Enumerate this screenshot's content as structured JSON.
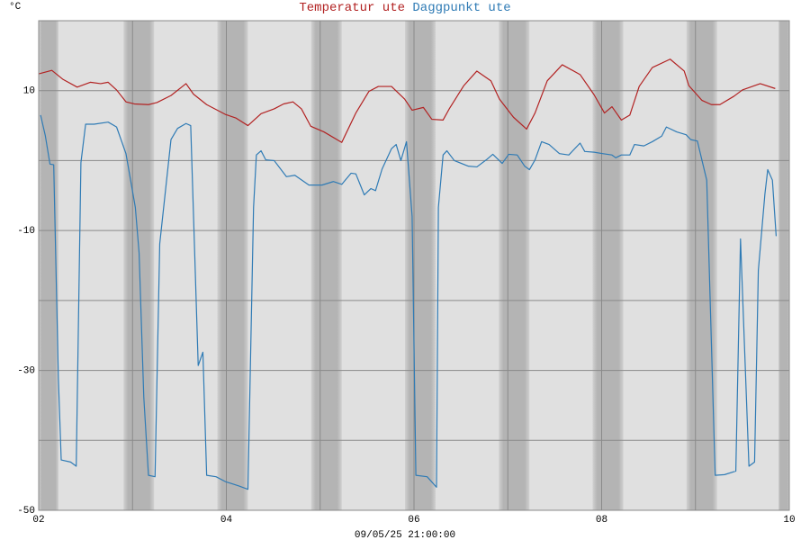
{
  "chart_data": {
    "type": "line",
    "ylabel": "°C",
    "xlabel": "09/05/25 21:00:00",
    "xlim": [
      2,
      10
    ],
    "xticks": [
      {
        "value": 2,
        "label": "02"
      },
      {
        "value": 4,
        "label": "04"
      },
      {
        "value": 6,
        "label": "06"
      },
      {
        "value": 8,
        "label": "08"
      },
      {
        "value": 10,
        "label": "10"
      }
    ],
    "minor_xticks": [
      3,
      5,
      7,
      9
    ],
    "ylim": [
      -50,
      20
    ],
    "yticks": [
      -50,
      -30,
      -10,
      10
    ],
    "minor_yticks": [
      -40,
      -20,
      0
    ],
    "grid": true,
    "series": [
      {
        "name": "Temperatur ute",
        "color": "#b22222",
        "x": [
          2.0,
          2.14,
          2.26,
          2.41,
          2.55,
          2.66,
          2.74,
          2.83,
          2.93,
          3.02,
          3.17,
          3.26,
          3.41,
          3.57,
          3.65,
          3.79,
          3.99,
          4.1,
          4.23,
          4.37,
          4.51,
          4.61,
          4.71,
          4.8,
          4.9,
          5.04,
          5.23,
          5.38,
          5.52,
          5.62,
          5.76,
          5.9,
          5.98,
          6.1,
          6.19,
          6.31,
          6.38,
          6.53,
          6.67,
          6.82,
          6.91,
          7.06,
          7.2,
          7.29,
          7.42,
          7.58,
          7.77,
          7.92,
          8.03,
          8.11,
          8.21,
          8.3,
          8.4,
          8.54,
          8.73,
          8.88,
          8.93,
          9.07,
          9.17,
          9.26,
          9.41,
          9.5,
          9.69,
          9.85
        ],
        "values": [
          12.4,
          12.9,
          11.6,
          10.5,
          11.2,
          11.0,
          11.2,
          10.1,
          8.4,
          8.1,
          8.0,
          8.3,
          9.3,
          11.0,
          9.5,
          8.0,
          6.6,
          6.1,
          5.0,
          6.7,
          7.4,
          8.1,
          8.4,
          7.4,
          4.9,
          4.1,
          2.6,
          6.8,
          9.9,
          10.6,
          10.6,
          8.8,
          7.2,
          7.6,
          5.9,
          5.8,
          7.5,
          10.7,
          12.8,
          11.4,
          8.8,
          6.2,
          4.5,
          6.8,
          11.4,
          13.7,
          12.3,
          9.4,
          6.8,
          7.7,
          5.8,
          6.5,
          10.6,
          13.3,
          14.5,
          12.8,
          10.7,
          8.6,
          8.0,
          8.0,
          9.2,
          10.1,
          11.0,
          10.3
        ]
      },
      {
        "name": "Daggpunkt ute",
        "color": "#2f7bb5",
        "x": [
          2.02,
          2.07,
          2.12,
          2.16,
          2.21,
          2.24,
          2.34,
          2.4,
          2.45,
          2.5,
          2.59,
          2.74,
          2.83,
          2.93,
          3.03,
          3.07,
          3.12,
          3.17,
          3.24,
          3.29,
          3.41,
          3.48,
          3.57,
          3.62,
          3.7,
          3.75,
          3.79,
          3.89,
          3.99,
          4.13,
          4.23,
          4.29,
          4.32,
          4.37,
          4.42,
          4.51,
          4.64,
          4.73,
          4.88,
          5.02,
          5.14,
          5.23,
          5.33,
          5.38,
          5.47,
          5.54,
          5.59,
          5.66,
          5.76,
          5.81,
          5.86,
          5.92,
          5.98,
          6.02,
          6.14,
          6.24,
          6.26,
          6.31,
          6.35,
          6.43,
          6.58,
          6.67,
          6.77,
          6.84,
          6.94,
          7.01,
          7.1,
          7.18,
          7.23,
          7.29,
          7.36,
          7.44,
          7.55,
          7.65,
          7.77,
          7.82,
          7.92,
          8.01,
          8.11,
          8.15,
          8.21,
          8.3,
          8.35,
          8.45,
          8.54,
          8.64,
          8.69,
          8.8,
          8.9,
          8.95,
          9.02,
          9.12,
          9.21,
          9.31,
          9.43,
          9.48,
          9.57,
          9.63,
          9.67,
          9.74,
          9.77,
          9.82,
          9.86
        ],
        "values": [
          6.5,
          3.6,
          -0.5,
          -0.6,
          -31.2,
          -42.8,
          -43.1,
          -43.7,
          -0.3,
          5.2,
          5.2,
          5.5,
          4.8,
          1.0,
          -6.7,
          -13.2,
          -33.8,
          -45.0,
          -45.2,
          -11.9,
          3.0,
          4.6,
          5.3,
          5.0,
          -29.3,
          -27.4,
          -45.0,
          -45.2,
          -45.9,
          -46.5,
          -47.0,
          -6.7,
          0.8,
          1.4,
          0.1,
          0.0,
          -2.3,
          -2.1,
          -3.5,
          -3.5,
          -3.0,
          -3.4,
          -1.8,
          -1.9,
          -4.9,
          -4.0,
          -4.3,
          -1.2,
          1.7,
          2.3,
          0.0,
          2.7,
          -8.0,
          -45.0,
          -45.2,
          -46.7,
          -6.7,
          0.8,
          1.4,
          0.0,
          -0.8,
          -0.9,
          0.1,
          0.9,
          -0.4,
          0.9,
          0.8,
          -0.8,
          -1.3,
          0.1,
          2.7,
          2.3,
          1.0,
          0.8,
          2.5,
          1.3,
          1.2,
          1.0,
          0.8,
          0.4,
          0.8,
          0.8,
          2.3,
          2.1,
          2.7,
          3.5,
          4.8,
          4.1,
          3.7,
          3.0,
          2.8,
          -2.8,
          -45.0,
          -44.9,
          -44.4,
          -11.2,
          -43.7,
          -43.1,
          -15.7,
          -4.8,
          -1.3,
          -2.8,
          -10.8
        ]
      }
    ]
  }
}
